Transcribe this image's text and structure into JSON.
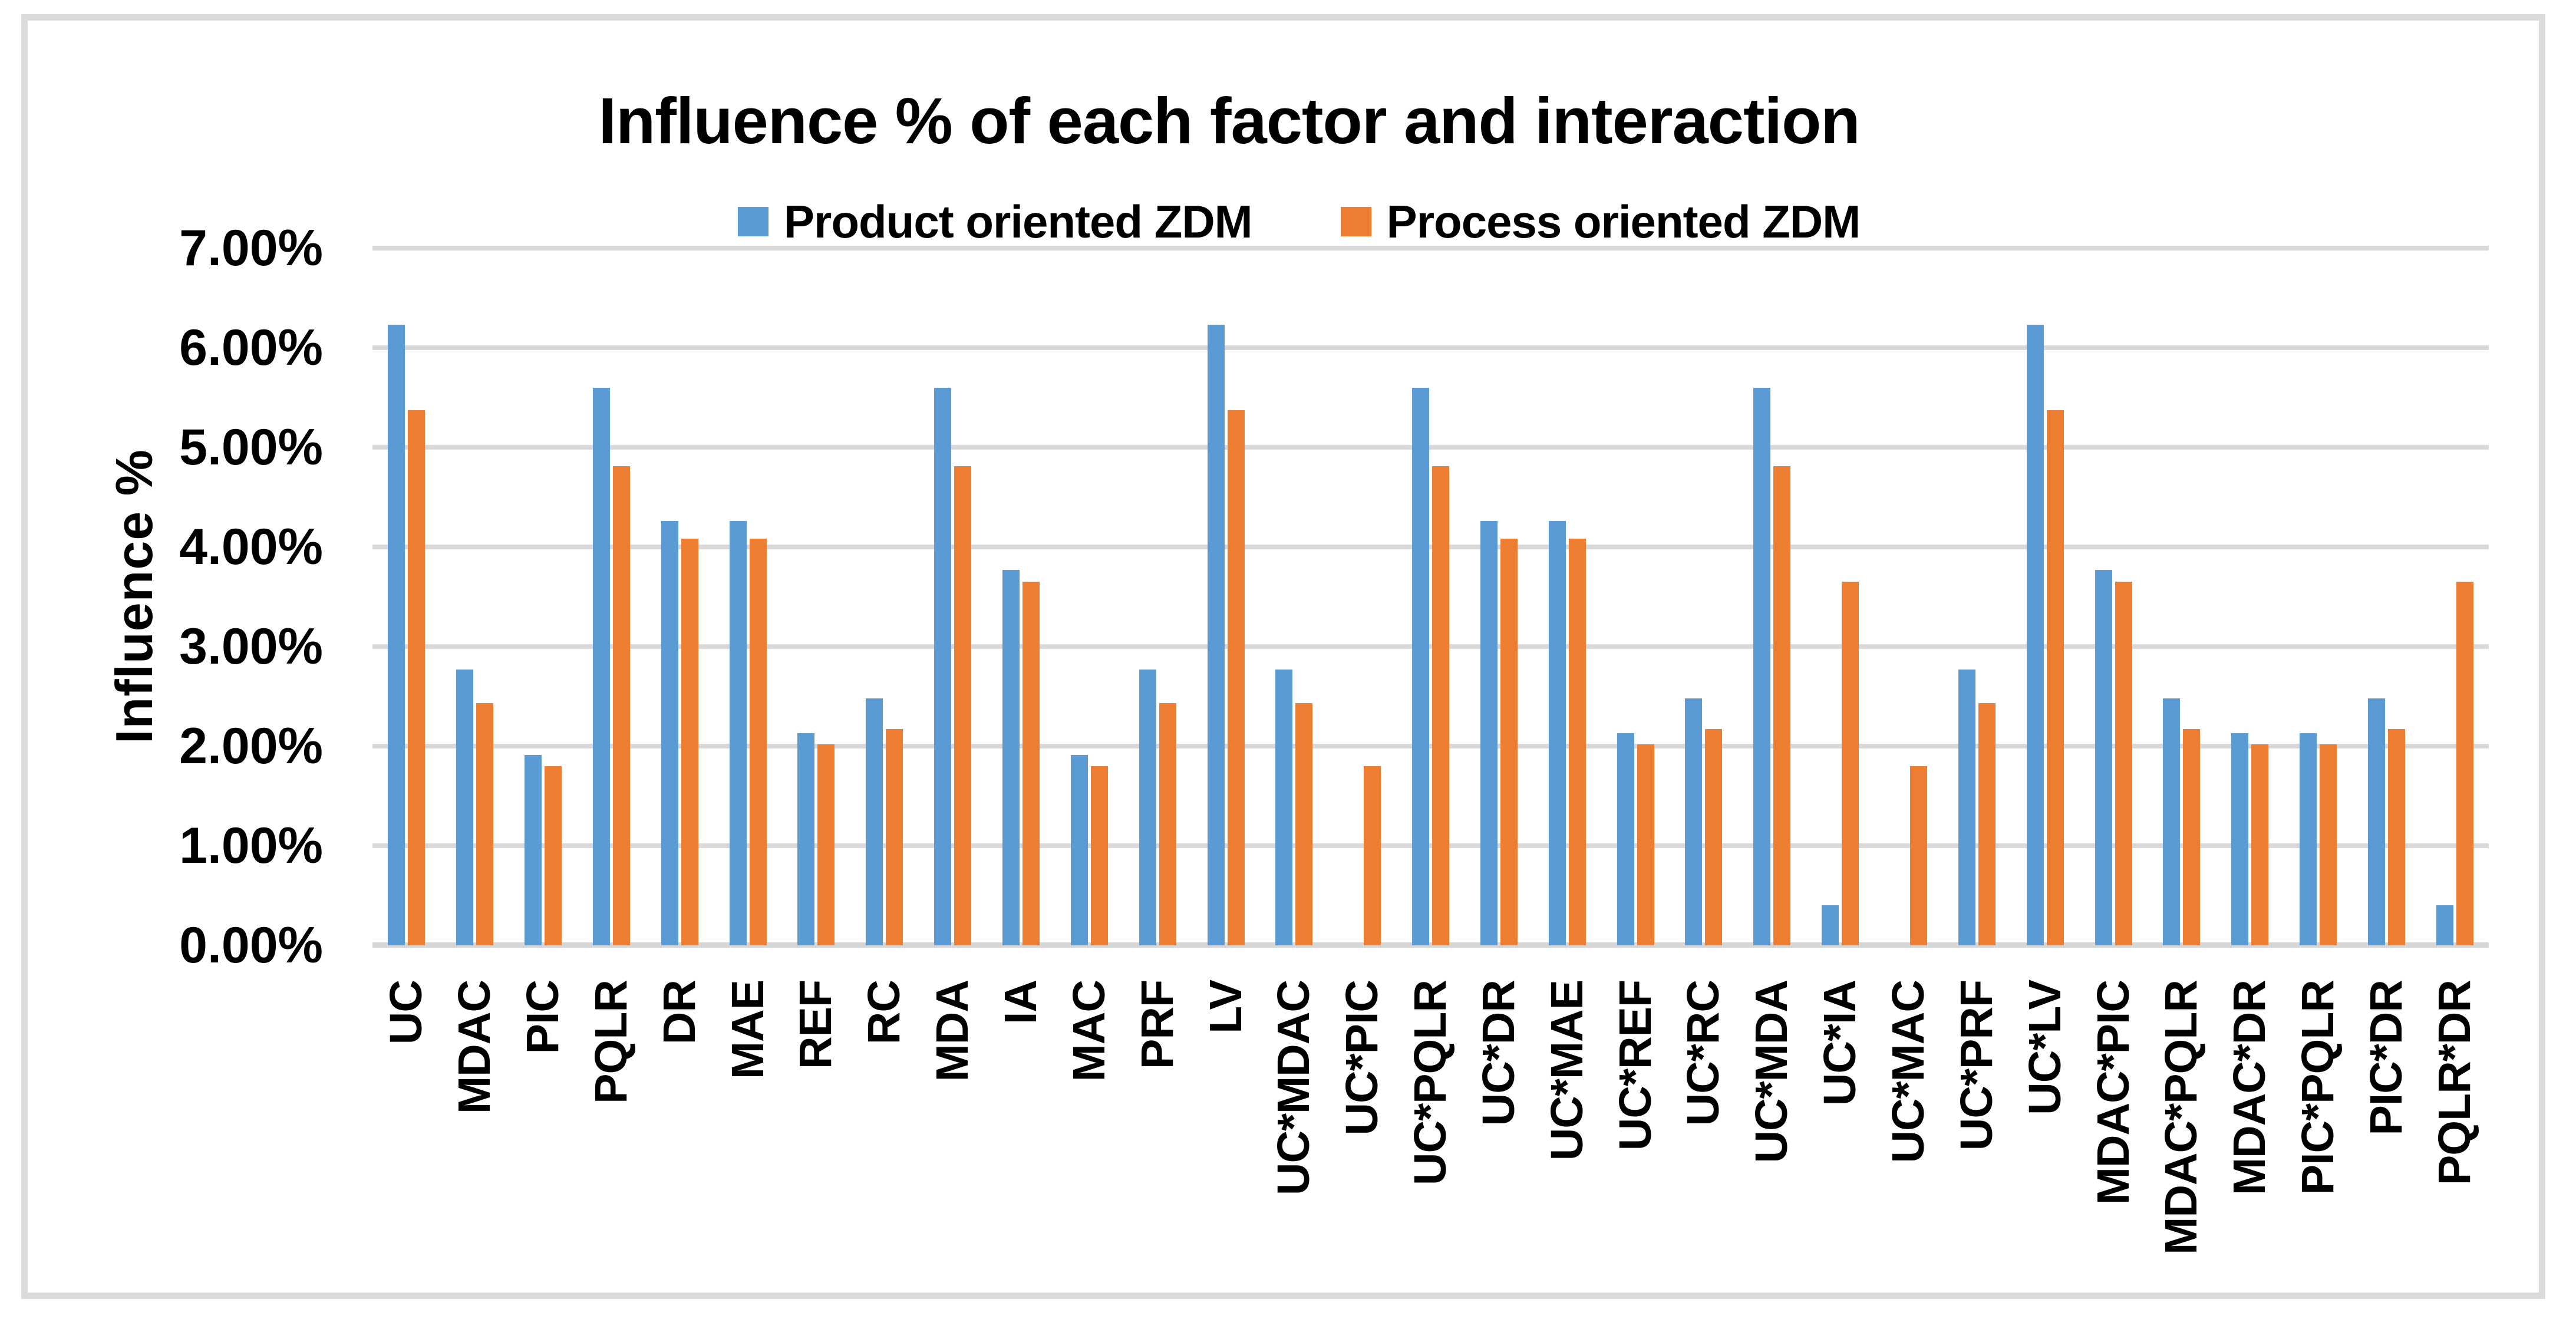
{
  "page": {
    "background": "#FFFFFF",
    "frame_border_color": "#DBDBDB",
    "gridline_color": "#D9D9D9"
  },
  "chart_data": {
    "type": "bar",
    "title": "Influence % of each factor and interaction",
    "ylabel": "Influence %",
    "xlabel": "",
    "ylim": [
      0,
      7
    ],
    "yunit": "%",
    "grid": true,
    "legend_position": "top-center",
    "ytick_labels": [
      "0.00%",
      "1.00%",
      "2.00%",
      "3.00%",
      "4.00%",
      "5.00%",
      "6.00%",
      "7.00%"
    ],
    "categories": [
      "UC",
      "MDAC",
      "PIC",
      "PQLR",
      "DR",
      "MAE",
      "REF",
      "RC",
      "MDA",
      "IA",
      "MAC",
      "PRF",
      "LV",
      "UC*MDAC",
      "UC*PIC",
      "UC*PQLR",
      "UC*DR",
      "UC*MAE",
      "UC*REF",
      "UC*RC",
      "UC*MDA",
      "UC*IA",
      "UC*MAC",
      "UC*PRF",
      "UC*LV",
      "MDAC*PIC",
      "MDAC*PQLR",
      "MDAC*DR",
      "PIC*PQLR",
      "PIC*DR",
      "PQLR*DR"
    ],
    "series": [
      {
        "name": "Product oriented ZDM",
        "color": "#5B9BD5",
        "values": [
          6.23,
          2.77,
          1.91,
          5.6,
          4.26,
          4.26,
          2.13,
          2.48,
          5.6,
          3.77,
          1.91,
          2.77,
          6.23,
          2.77,
          0,
          5.6,
          4.26,
          4.26,
          2.13,
          2.48,
          5.6,
          0.4,
          0,
          2.77,
          6.23,
          3.77,
          2.48,
          2.13,
          2.13,
          2.48,
          0.4
        ]
      },
      {
        "name": "Process oriented ZDM",
        "color": "#ED7D31",
        "values": [
          5.37,
          2.43,
          1.8,
          4.81,
          4.08,
          4.08,
          2.02,
          2.17,
          4.81,
          3.65,
          1.8,
          2.43,
          5.37,
          2.43,
          1.8,
          4.81,
          4.08,
          4.08,
          2.02,
          2.17,
          4.81,
          3.65,
          1.8,
          2.43,
          5.37,
          3.65,
          2.17,
          2.02,
          2.02,
          2.17,
          3.65
        ]
      }
    ]
  }
}
